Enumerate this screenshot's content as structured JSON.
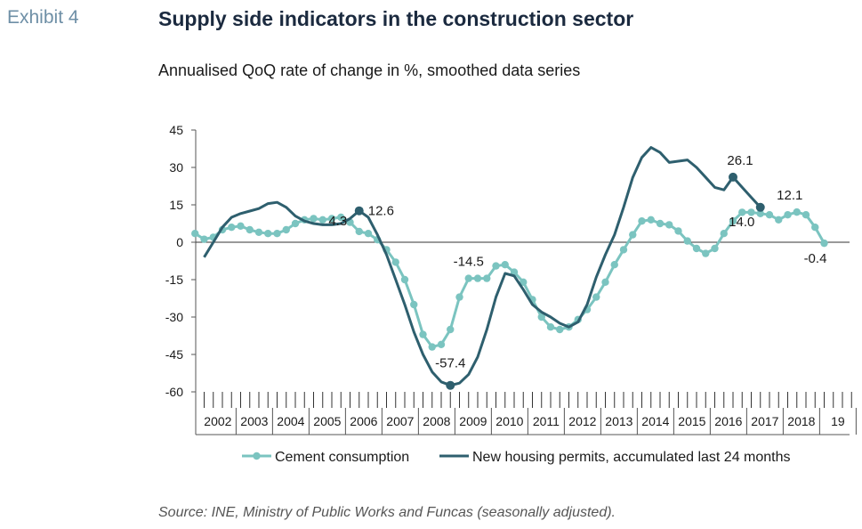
{
  "exhibit": "Exhibit 4",
  "title": "Supply side indicators in the construction sector",
  "subtitle": "Annualised QoQ rate of change in %, smoothed data series",
  "source": "Source: INE, Ministry of Public Works and Funcas (seasonally adjusted).",
  "colors": {
    "cement": "#7bc4c0",
    "permits": "#2e5f6e",
    "axis": "#555555"
  },
  "chart_data": {
    "type": "line",
    "x_unit": "quarter (2002Q1 = first tick)",
    "ylim": [
      -60,
      45
    ],
    "yticks": [
      45,
      30,
      15,
      0,
      -15,
      -30,
      -45,
      -60
    ],
    "year_labels": [
      "2002",
      "2003",
      "2004",
      "2005",
      "2006",
      "2007",
      "2008",
      "2009",
      "2010",
      "2011",
      "2012",
      "2013",
      "2014",
      "2015",
      "2016",
      "2017",
      "2018",
      "19"
    ],
    "series": [
      {
        "name": "Cement consumption",
        "start": "2001Q4",
        "markers": true,
        "values": [
          3.5,
          1.2,
          2.0,
          5.0,
          6.0,
          6.5,
          5.0,
          4.0,
          3.5,
          3.5,
          5.0,
          7.5,
          9.0,
          9.5,
          9.0,
          9.5,
          10.0,
          8.0,
          4.3,
          3.5,
          1.0,
          -3.0,
          -8.0,
          -15.0,
          -25.0,
          -37.0,
          -42.0,
          -41.0,
          -35.0,
          -22.0,
          -14.5,
          -14.5,
          -14.5,
          -9.5,
          -9.0,
          -12.0,
          -16.0,
          -23.0,
          -30.0,
          -34.0,
          -35.0,
          -34.0,
          -31.0,
          -27.0,
          -22.0,
          -16.0,
          -9.0,
          -3.0,
          3.0,
          8.5,
          9.0,
          7.5,
          7.0,
          4.5,
          0.5,
          -2.5,
          -4.5,
          -2.5,
          3.5,
          8.5,
          12.0,
          12.0,
          11.5,
          11.0,
          9.0,
          11.0,
          12.1,
          11.0,
          6.0,
          -0.4
        ]
      },
      {
        "name": "New housing permits, accumulated last 24 months",
        "start": "2002Q1",
        "markers": false,
        "values": [
          -6.0,
          0.0,
          6.0,
          10.0,
          11.5,
          12.5,
          13.5,
          15.5,
          16.0,
          14.0,
          10.5,
          8.5,
          7.5,
          7.0,
          7.0,
          7.5,
          9.5,
          12.6,
          10.0,
          3.0,
          -5.0,
          -15.0,
          -25.0,
          -36.0,
          -45.0,
          -52.0,
          -56.0,
          -57.4,
          -56.5,
          -53.0,
          -46.0,
          -35.0,
          -22.0,
          -12.5,
          -13.5,
          -19.0,
          -25.0,
          -28.0,
          -30.0,
          -32.5,
          -34.0,
          -32.0,
          -25.0,
          -14.0,
          -5.0,
          3.0,
          14.0,
          26.0,
          34.0,
          38.0,
          36.0,
          32.0,
          32.5,
          33.0,
          30.0,
          26.0,
          22.0,
          21.0,
          26.1,
          22.0,
          18.0,
          14.0
        ]
      }
    ],
    "annotations": [
      {
        "text": "4.3",
        "series": 0,
        "index": 18
      },
      {
        "text": "-14.5",
        "series": 0,
        "index": 30
      },
      {
        "text": "12.1",
        "series": 0,
        "index": 66
      },
      {
        "text": "-0.4",
        "series": 0,
        "index": 69
      },
      {
        "text": "12.6",
        "series": 1,
        "index": 17
      },
      {
        "text": "-57.4",
        "series": 1,
        "index": 27
      },
      {
        "text": "26.1",
        "series": 1,
        "index": 58
      },
      {
        "text": "14.0",
        "series": 1,
        "index": 61
      }
    ],
    "legend": "bottom",
    "grid": false
  }
}
